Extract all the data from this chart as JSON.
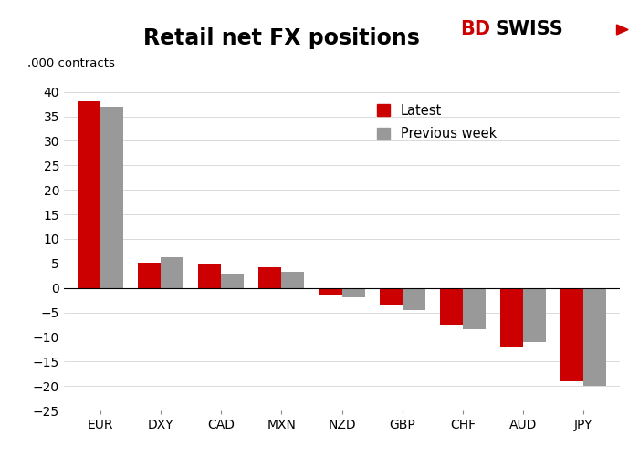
{
  "categories": [
    "EUR",
    "DXY",
    "CAD",
    "MXN",
    "NZD",
    "GBP",
    "CHF",
    "AUD",
    "JPY"
  ],
  "latest": [
    38.0,
    5.2,
    5.0,
    4.2,
    -1.5,
    -3.5,
    -7.5,
    -12.0,
    -19.0
  ],
  "previous_week": [
    37.0,
    6.2,
    3.0,
    3.3,
    -2.0,
    -4.5,
    -8.5,
    -11.0,
    -20.0
  ],
  "color_latest": "#cc0000",
  "color_previous": "#999999",
  "title": "Retail net FX positions",
  "ylabel": ",000 contracts",
  "ylim": [
    -25,
    42
  ],
  "yticks": [
    -25,
    -20,
    -15,
    -10,
    -5,
    0,
    5,
    10,
    15,
    20,
    25,
    30,
    35,
    40
  ],
  "bar_width": 0.38,
  "legend_latest": "Latest",
  "legend_previous": "Previous week",
  "bdswiss_bd": "BD",
  "bdswiss_swiss": "SWISS",
  "background_color": "#ffffff",
  "title_fontsize": 17,
  "label_fontsize": 9.5,
  "tick_fontsize": 10
}
